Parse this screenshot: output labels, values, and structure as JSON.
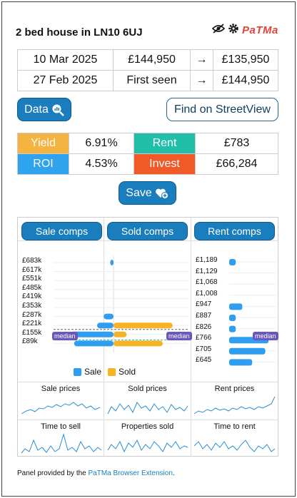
{
  "header": {
    "title": "2 bed house in LN10 6UJ",
    "logo": "PaTMa",
    "icons": [
      "eye-off-icon",
      "gear-icon"
    ]
  },
  "history": [
    {
      "date": "10 Mar 2025",
      "from": "£144,950",
      "arrow": "→",
      "to": "£135,950"
    },
    {
      "date": "27 Feb 2025",
      "from": "First seen",
      "arrow": "→",
      "to": "£144,950"
    }
  ],
  "buttons": {
    "data": "Data",
    "streetview": "Find on StreetView",
    "save": "Save"
  },
  "stats": {
    "yield_label": "Yield",
    "yield": "6.91%",
    "rent_label": "Rent",
    "rent": "£783",
    "roi_label": "ROI",
    "roi": "4.53%",
    "invest_label": "Invest",
    "invest": "£66,284"
  },
  "colors": {
    "yield": "#f5b341",
    "rent": "#21bfa8",
    "roi": "#2fa3ee",
    "invest": "#f05a28",
    "sale": "#2f9ef0",
    "sold": "#f5b325"
  },
  "comps": {
    "sale_btn": "Sale comps",
    "sold_btn": "Sold comps",
    "rent_btn": "Rent comps",
    "median_label": "median",
    "legend_sale": "Sale",
    "legend_sold": "Sold",
    "price_ticks": [
      "£683k",
      "£617k",
      "£551k",
      "£485k",
      "£419k",
      "£353k",
      "£287k",
      "£221k",
      "£155k",
      "£89k"
    ],
    "rent_ticks": [
      "£1,189",
      "£1,129",
      "£1,068",
      "£1,008",
      "£947",
      "£887",
      "£826",
      "£766",
      "£705",
      "£645"
    ]
  },
  "chart_data": [
    {
      "type": "bar",
      "title": "",
      "categories": [
        "£683k",
        "£617k",
        "£551k",
        "£485k",
        "£419k",
        "£353k",
        "£287k",
        "£221k",
        "£155k",
        "£89k"
      ],
      "series": [
        {
          "name": "Sale",
          "values": [
            1,
            0,
            0,
            0,
            0,
            0,
            3,
            5,
            13,
            12
          ]
        },
        {
          "name": "Sold",
          "values": [
            0,
            0,
            0,
            0,
            0,
            0,
            0,
            18,
            4,
            15
          ]
        }
      ]
    },
    {
      "type": "bar",
      "title": "",
      "categories": [
        "£1,189",
        "£1,129",
        "£1,068",
        "£1,008",
        "£947",
        "£887",
        "£826",
        "£766",
        "£705",
        "£645"
      ],
      "series": [
        {
          "name": "Rent",
          "values": [
            2,
            0,
            0,
            0,
            4,
            2,
            2,
            12,
            11,
            7
          ]
        }
      ]
    }
  ],
  "sparklines": {
    "sale": "Sale prices",
    "sold": "Sold prices",
    "rent": "Rent prices",
    "time_sell": "Time to sell",
    "props_sold": "Properties sold",
    "time_rent": "Time to rent"
  },
  "footer": {
    "prefix": "Panel provided by the ",
    "link": "PaTMa Browser Extension",
    "suffix": "."
  }
}
